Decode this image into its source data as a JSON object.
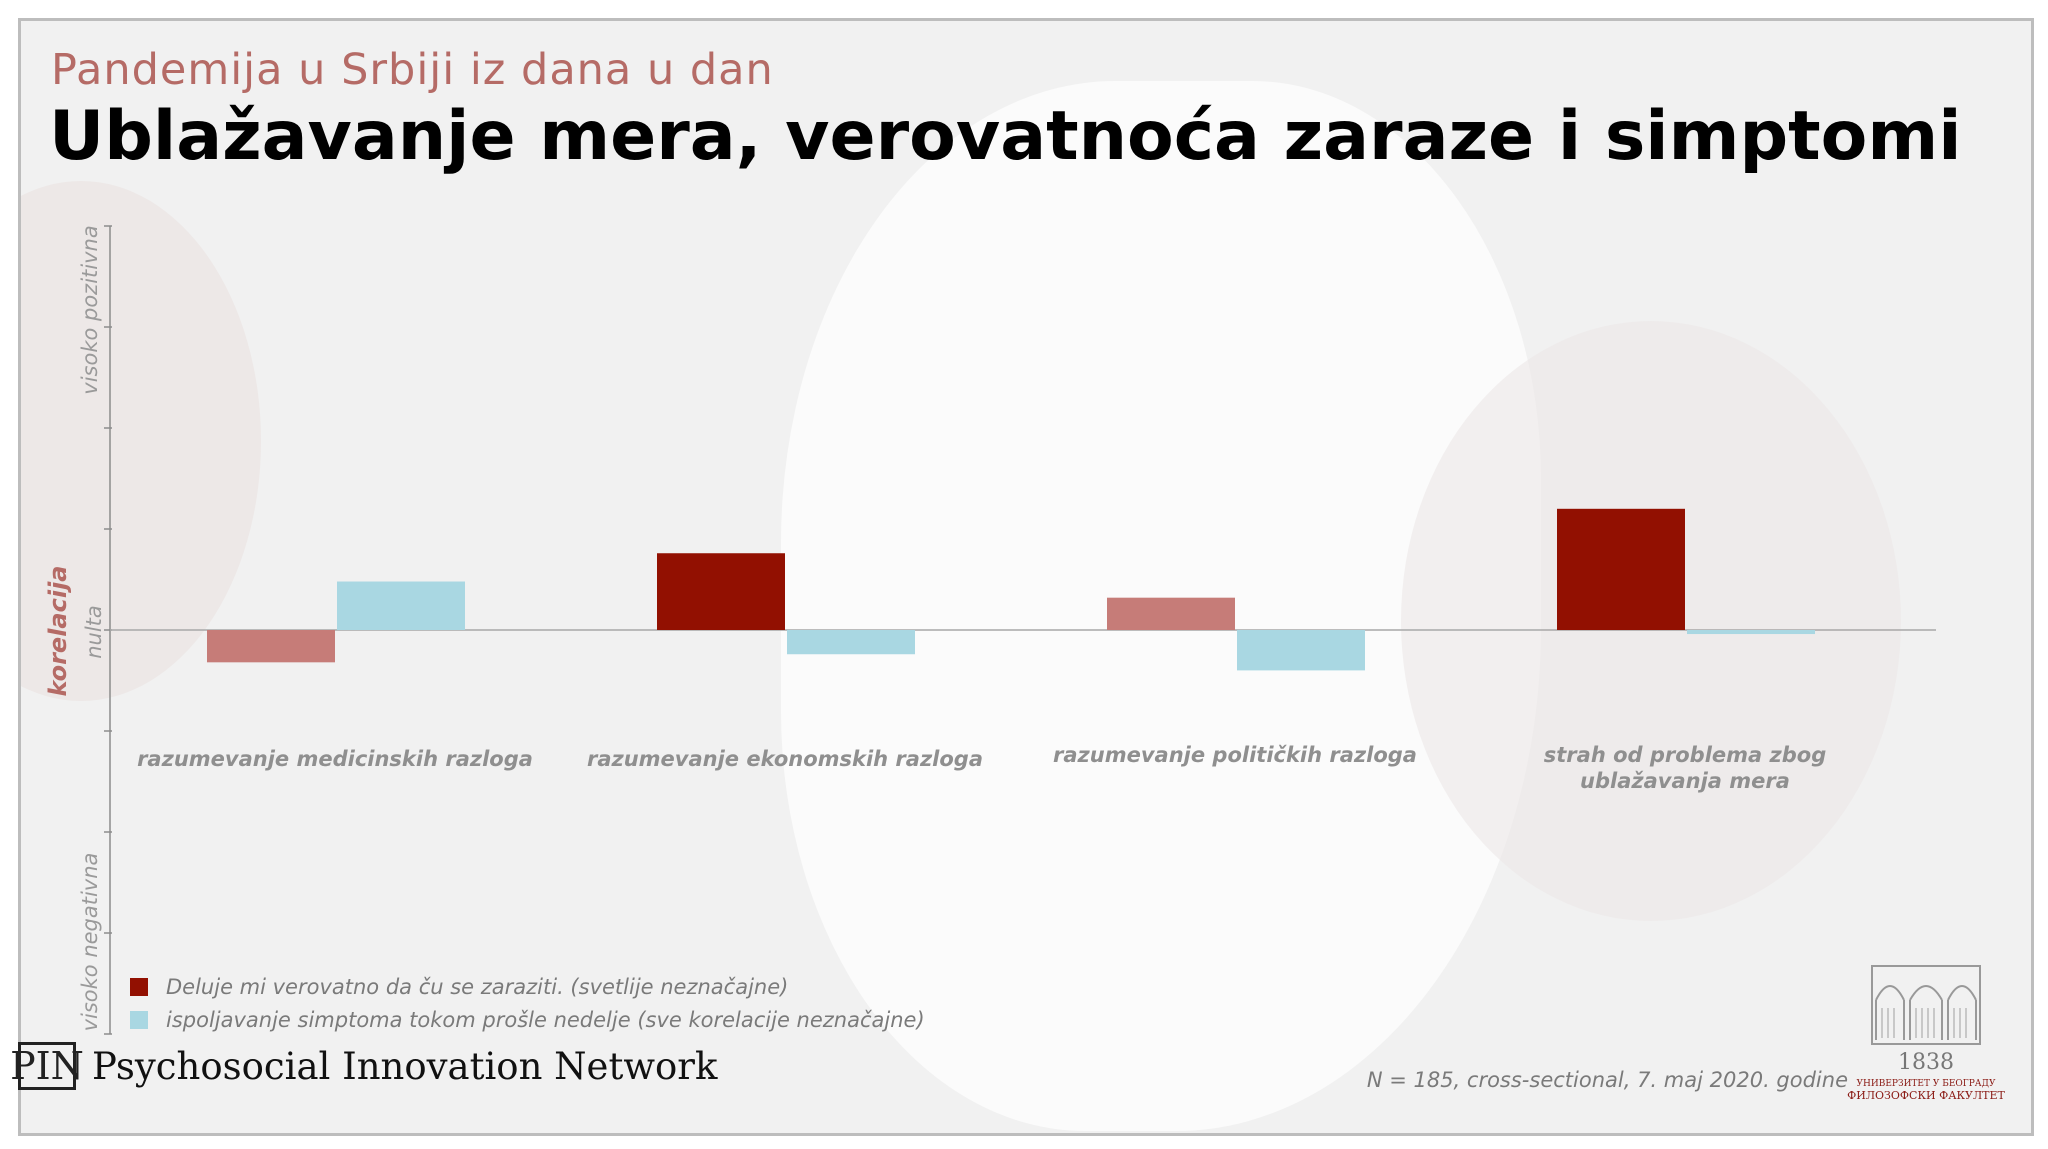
{
  "header": {
    "subtitle": "Pandemija u Srbiji iz dana u dan",
    "title": "Ublažavanje mera, verovatnoća zaraze i simptomi"
  },
  "y_axis": {
    "top_label": "visoko pozitivna",
    "middle_label_red": "korelacija",
    "middle_label_grey": "nulta",
    "bottom_label": "visoko negativna"
  },
  "colors": {
    "series1_significant": "#921001",
    "series1_nonsignificant": "#c67c78",
    "series2": "#a9d7e2",
    "axis": "#8c8c8c"
  },
  "chart_data": {
    "type": "bar",
    "categories": [
      "razumevanje medicinskih razloga",
      "razumevanje ekonomskih razloga",
      "razumevanje političkih razloga",
      "strah od problema zbog ublažavanja mera"
    ],
    "category_lines": [
      [
        "razumevanje medicinskih razloga"
      ],
      [
        "razumevanje ekonomskih razloga"
      ],
      [
        "razumevanje političkih razloga"
      ],
      [
        "strah od problema zbog",
        "ublažavanja mera"
      ]
    ],
    "series": [
      {
        "name": "Deluje mi verovatno da ču se zaraziti. (svetlije neznačajne)",
        "values": [
          -0.08,
          0.19,
          0.08,
          0.3
        ],
        "significant": [
          false,
          true,
          false,
          true
        ]
      },
      {
        "name": "ispoljavanje simptoma  tokom prošle nedelje (sve korelacije neznačajne)",
        "values": [
          0.12,
          -0.06,
          -0.1,
          -0.01
        ]
      }
    ],
    "ylim": [
      -1,
      1
    ],
    "grid": false,
    "legend_position": "bottom-left"
  },
  "footer": {
    "brand_logo": "PIN",
    "brand_name": "Psychosocial Innovation Network",
    "note": "N = 185, cross-sectional, 7. maj 2020. godine",
    "university_year": "1838",
    "university_line1": "УНИВЕРЗИТЕТ У БЕОГРАДУ",
    "university_line2": "ФИЛОЗОФСКИ ФАКУЛТЕТ"
  }
}
